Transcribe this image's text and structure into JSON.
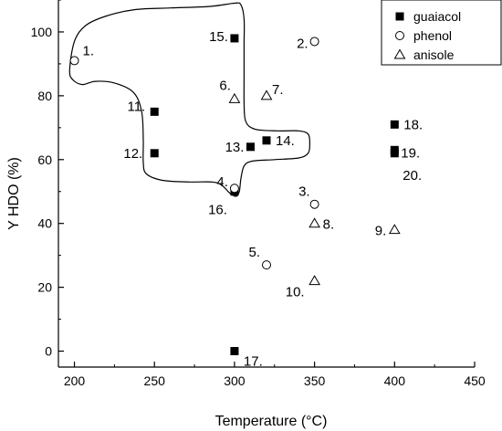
{
  "chart_data": {
    "type": "scatter",
    "xlabel": "Temperature (°C)",
    "ylabel": "Y HDO (%)",
    "xlim": [
      190,
      450
    ],
    "ylim": [
      -5,
      110
    ],
    "xticks": [
      200,
      250,
      300,
      350,
      400,
      450
    ],
    "yticks": [
      0,
      20,
      40,
      60,
      80,
      100
    ],
    "grid": false,
    "legend_placement": "top-right",
    "series": [
      {
        "name": "guaiacol",
        "marker": "filled-square",
        "points": [
          {
            "x": 250,
            "y": 75,
            "label": "11."
          },
          {
            "x": 250,
            "y": 62,
            "label": "12."
          },
          {
            "x": 300,
            "y": 98,
            "label": "15."
          },
          {
            "x": 300,
            "y": 50,
            "label": "16."
          },
          {
            "x": 300,
            "y": 0,
            "label": "17."
          },
          {
            "x": 310,
            "y": 64,
            "label": "13."
          },
          {
            "x": 320,
            "y": 66,
            "label": "14."
          },
          {
            "x": 400,
            "y": 71,
            "label": "18."
          },
          {
            "x": 400,
            "y": 63,
            "label": "19."
          },
          {
            "x": 400,
            "y": 62,
            "label": "20."
          }
        ]
      },
      {
        "name": "phenol",
        "marker": "open-circle",
        "points": [
          {
            "x": 200,
            "y": 91,
            "label": "1."
          },
          {
            "x": 350,
            "y": 97,
            "label": "2."
          },
          {
            "x": 350,
            "y": 46,
            "label": "3."
          },
          {
            "x": 300,
            "y": 51,
            "label": "4."
          },
          {
            "x": 320,
            "y": 27,
            "label": "5."
          }
        ]
      },
      {
        "name": "anisole",
        "marker": "open-triangle",
        "points": [
          {
            "x": 300,
            "y": 79,
            "label": "6."
          },
          {
            "x": 320,
            "y": 80,
            "label": "7."
          },
          {
            "x": 350,
            "y": 40,
            "label": "8."
          },
          {
            "x": 400,
            "y": 38,
            "label": "9."
          },
          {
            "x": 350,
            "y": 22,
            "label": "10."
          }
        ]
      }
    ],
    "annotation_region": {
      "shape": "closed-outline",
      "outline": [
        [
          197,
          88
        ],
        [
          200,
          97
        ],
        [
          207,
          102
        ],
        [
          220,
          105
        ],
        [
          238,
          107
        ],
        [
          260,
          107.5
        ],
        [
          285,
          108
        ],
        [
          300,
          109
        ],
        [
          304,
          108.5
        ],
        [
          306,
          104
        ],
        [
          306,
          96
        ],
        [
          306,
          86
        ],
        [
          306,
          78
        ],
        [
          307,
          72
        ],
        [
          313,
          69.5
        ],
        [
          327,
          69
        ],
        [
          340,
          69
        ],
        [
          346,
          68
        ],
        [
          347,
          65
        ],
        [
          346,
          62
        ],
        [
          340,
          60.5
        ],
        [
          325,
          60
        ],
        [
          311,
          59.5
        ],
        [
          306,
          58
        ],
        [
          304,
          54
        ],
        [
          303,
          50
        ],
        [
          301,
          48.5
        ],
        [
          297,
          49.5
        ],
        [
          292,
          52
        ],
        [
          286,
          53
        ],
        [
          272,
          53
        ],
        [
          255,
          53.5
        ],
        [
          245,
          55.5
        ],
        [
          243,
          59
        ],
        [
          243,
          66
        ],
        [
          242,
          75
        ],
        [
          237,
          81
        ],
        [
          225,
          84
        ],
        [
          213,
          84.5
        ],
        [
          205,
          83.5
        ],
        [
          199,
          85
        ]
      ]
    }
  }
}
